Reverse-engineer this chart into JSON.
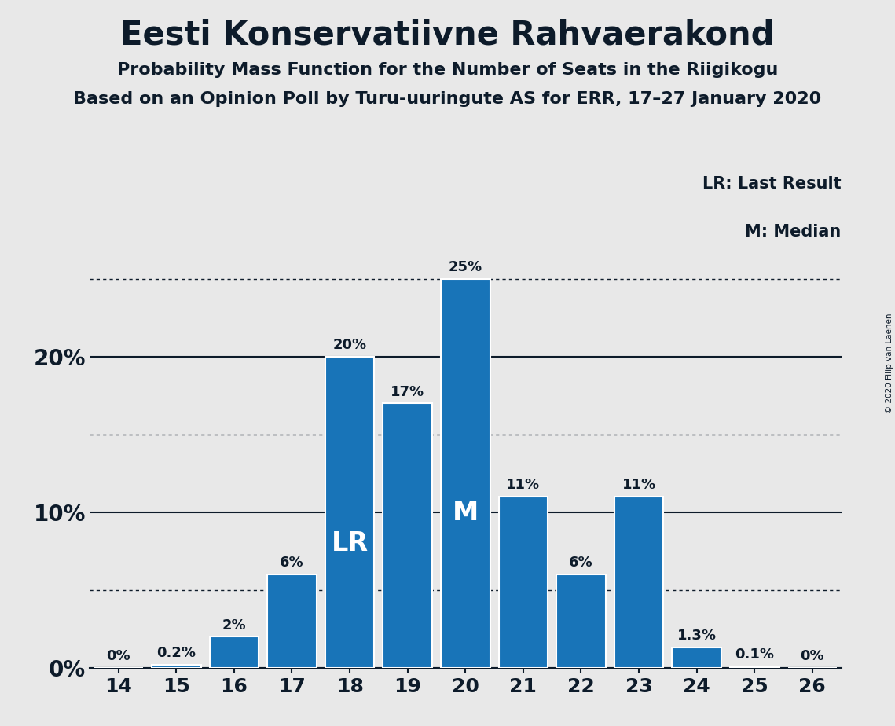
{
  "title": "Eesti Konservatiivne Rahvaerakond",
  "subtitle1": "Probability Mass Function for the Number of Seats in the Riigikogu",
  "subtitle2": "Based on an Opinion Poll by Turu-uuringute AS for ERR, 17–27 January 2020",
  "copyright": "© 2020 Filip van Laenen",
  "seats": [
    14,
    15,
    16,
    17,
    18,
    19,
    20,
    21,
    22,
    23,
    24,
    25,
    26
  ],
  "probabilities": [
    0.0,
    0.2,
    2.0,
    6.0,
    20.0,
    17.0,
    25.0,
    11.0,
    6.0,
    11.0,
    1.3,
    0.1,
    0.0
  ],
  "labels": [
    "0%",
    "0.2%",
    "2%",
    "6%",
    "20%",
    "17%",
    "25%",
    "11%",
    "6%",
    "11%",
    "1.3%",
    "0.1%",
    "0%"
  ],
  "bar_color": "#1874b8",
  "bar_edge_color": "#ffffff",
  "LR_seat": 18,
  "M_seat": 20,
  "LR_label": "LR",
  "M_label": "M",
  "legend_LR": "LR: Last Result",
  "legend_M": "M: Median",
  "background_color": "#e8e8e8",
  "title_color": "#0d1b2a",
  "yticks": [
    0,
    10,
    20
  ],
  "ylim": [
    0,
    28
  ],
  "dotted_lines": [
    5.0,
    15.0,
    25.0
  ],
  "solid_lines": [
    0,
    10,
    20
  ],
  "title_fontsize": 30,
  "subtitle_fontsize": 16,
  "label_fontsize": 13,
  "axis_fontsize": 20
}
